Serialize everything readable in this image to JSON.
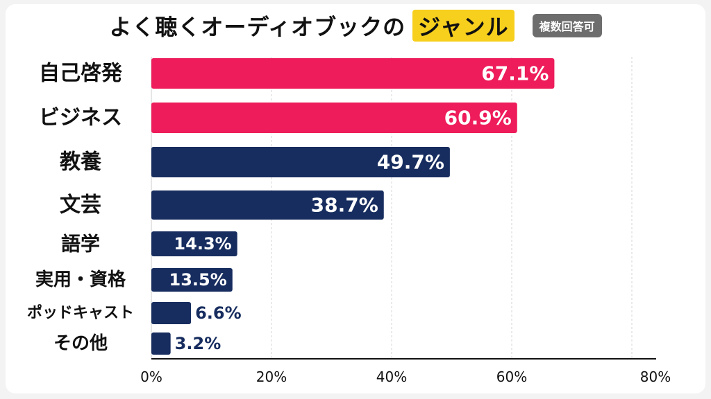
{
  "header": {
    "title_main": "よく聴くオーディオブックの",
    "title_highlight": "ジャンル",
    "badge": "複数回答可"
  },
  "colors": {
    "highlight_bar": "#ee1c5a",
    "normal_bar": "#172d5f",
    "title_highlight_bg": "#f7cf1d",
    "badge_bg": "#6d6d6d"
  },
  "chart_data": {
    "type": "bar",
    "orientation": "horizontal",
    "categories": [
      "自己啓発",
      "ビジネス",
      "教養",
      "文芸",
      "語学",
      "実用・資格",
      "ポッドキャスト",
      "その他"
    ],
    "values": [
      67.1,
      60.9,
      49.7,
      38.7,
      14.3,
      13.5,
      6.6,
      3.2
    ],
    "value_labels": [
      "67.1%",
      "60.9%",
      "49.7%",
      "38.7%",
      "14.3%",
      "13.5%",
      "6.6%",
      "3.2%"
    ],
    "highlighted": [
      true,
      true,
      false,
      false,
      false,
      false,
      false,
      false
    ],
    "xlim": [
      0,
      80
    ],
    "xticks": [
      0,
      20,
      40,
      60,
      80
    ],
    "xtick_labels": [
      "0%",
      "20%",
      "40%",
      "60%",
      "80%"
    ],
    "grid": true
  }
}
